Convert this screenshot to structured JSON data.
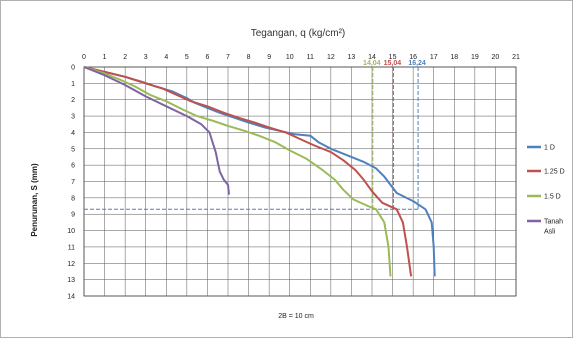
{
  "chart_data": {
    "type": "line",
    "title": "Tegangan, q (kg/cm²)",
    "ylabel": "Penurunan, S (mm)",
    "footnote": "2B = 10 cm",
    "xlim": [
      0,
      21
    ],
    "ylim": [
      0,
      14
    ],
    "x_ticks": [
      "0",
      "1",
      "2",
      "3",
      "4",
      "5",
      "6",
      "7",
      "8",
      "9",
      "10",
      "11",
      "12",
      "13",
      "14",
      "15",
      "16",
      "17",
      "18",
      "19",
      "20",
      "21"
    ],
    "y_ticks": [
      "0",
      "1",
      "2",
      "3",
      "4",
      "5",
      "6",
      "7",
      "8",
      "9",
      "10",
      "11",
      "12",
      "13",
      "14"
    ],
    "grid": true,
    "x_axis_position": "top",
    "y_axis_inverted": true,
    "legend_position": "right",
    "reference_value_labels": [
      "14,04",
      "15,04",
      "16,24"
    ],
    "reference_lines": [
      {
        "type": "vertical",
        "x": 14.04,
        "y_top": 0,
        "y_bottom": 8.7,
        "color": "#9bbb59",
        "label": "14,04"
      },
      {
        "type": "vertical",
        "x": 15.04,
        "y_top": 0,
        "y_bottom": 8.7,
        "color": "#c0504d",
        "label": "15,04"
      },
      {
        "type": "vertical",
        "x": 16.24,
        "y_top": 0,
        "y_bottom": 8.7,
        "color": "#4f81bd",
        "label": "16,24"
      },
      {
        "type": "horizontal",
        "y": 8.7,
        "x_start": 0,
        "x_end": 16.24,
        "color": "#5a7fa8"
      }
    ],
    "series": [
      {
        "name": "1 D",
        "color": "#4f81bd",
        "x": [
          0,
          1,
          2,
          2.8,
          3.5,
          4.3,
          5,
          5.4,
          6,
          6.6,
          7.3,
          8,
          8.8,
          9.5,
          10.2,
          11,
          11.4,
          12,
          12.8,
          13.6,
          14.2,
          14.6,
          15.2,
          16,
          16.6,
          16.9,
          17,
          17.05
        ],
        "y": [
          0,
          0.3,
          0.6,
          0.9,
          1.2,
          1.5,
          1.9,
          2.2,
          2.5,
          2.8,
          3.1,
          3.4,
          3.7,
          3.9,
          4.1,
          4.2,
          4.6,
          5.0,
          5.4,
          5.8,
          6.2,
          6.7,
          7.7,
          8.2,
          8.7,
          9.5,
          11.0,
          12.8
        ]
      },
      {
        "name": "1.25 D",
        "color": "#c0504d",
        "x": [
          0,
          1,
          2,
          3,
          3.8,
          4.5,
          5.2,
          6,
          6.8,
          7.5,
          8.3,
          9,
          9.8,
          10.5,
          11.2,
          12,
          12.6,
          13.2,
          13.6,
          14,
          14.5,
          15.2,
          15.5,
          15.7,
          15.9
        ],
        "y": [
          0,
          0.3,
          0.6,
          1.0,
          1.3,
          1.7,
          2.1,
          2.4,
          2.8,
          3.1,
          3.4,
          3.7,
          4.0,
          4.4,
          4.8,
          5.2,
          5.7,
          6.3,
          6.9,
          7.6,
          8.3,
          8.7,
          9.5,
          11.0,
          12.8
        ]
      },
      {
        "name": "1.5 D",
        "color": "#9bbb59",
        "x": [
          0,
          1,
          1.8,
          2.5,
          3.2,
          4,
          4.8,
          5.5,
          6.3,
          7,
          7.8,
          8.5,
          9.3,
          10,
          10.8,
          11.6,
          12.2,
          12.6,
          13.1,
          13.8,
          14.2,
          14.6,
          14.8,
          14.9
        ],
        "y": [
          0,
          0.4,
          0.8,
          1.2,
          1.7,
          2.1,
          2.6,
          3.0,
          3.3,
          3.6,
          3.9,
          4.2,
          4.6,
          5.1,
          5.6,
          6.3,
          6.9,
          7.5,
          8.1,
          8.5,
          8.7,
          9.5,
          11.0,
          12.8
        ]
      },
      {
        "name": "Tanah Asli",
        "color": "#8064a2",
        "x": [
          0,
          1,
          2,
          3,
          4,
          5,
          5.7,
          6.1,
          6.3,
          6.4,
          6.5,
          6.6,
          6.8,
          7,
          7.05
        ],
        "y": [
          0,
          0.5,
          1.1,
          1.8,
          2.4,
          3.0,
          3.5,
          4.0,
          4.8,
          5.2,
          5.8,
          6.4,
          6.9,
          7.2,
          7.8
        ]
      }
    ]
  }
}
